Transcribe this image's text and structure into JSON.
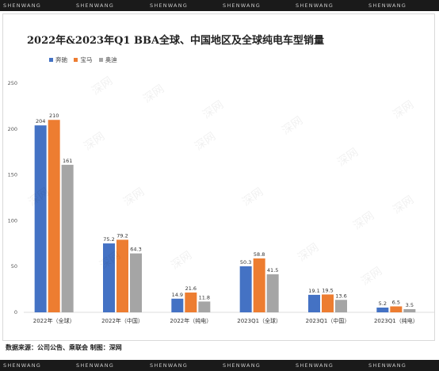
{
  "watermark_band": {
    "text": "SHENWANG",
    "bg": "#1a1a1a"
  },
  "watermark_overlay": {
    "text": "深网"
  },
  "source_note": "数据来源：公司公告、乘联会 制图：深网",
  "colors": {
    "series": [
      "#4472c4",
      "#ed7d31",
      "#a5a5a5"
    ],
    "axis_text": "#555555",
    "grid": "#e8e8e8"
  },
  "chart_data": {
    "type": "bar",
    "title": "2022年&2023年Q1 BBA全球、中国地区及全球纯电车型销量",
    "xlabel": "",
    "ylabel": "",
    "categories": [
      "2022年（全球）",
      "2022年（中国）",
      "2022年（纯电）",
      "2023Q1（全球）",
      "2023Q1（中国）",
      "2023Q1（纯电）"
    ],
    "series": [
      {
        "name": "奔驰",
        "values": [
          204,
          75.2,
          14.9,
          50.3,
          19.1,
          5.2
        ],
        "labels": [
          "204",
          "75.2",
          "14.9",
          "50.3",
          "19.1",
          "5.2"
        ]
      },
      {
        "name": "宝马",
        "values": [
          210,
          79.2,
          21.6,
          58.8,
          19.5,
          6.5
        ],
        "labels": [
          "210",
          "79.2",
          "21.6",
          "58.8",
          "19.5",
          "6.5"
        ]
      },
      {
        "name": "奥迪",
        "values": [
          161,
          64.3,
          11.8,
          41.5,
          13.6,
          3.5
        ],
        "labels": [
          "161",
          "64.3",
          "11.8",
          "41.5",
          "13.6",
          "3.5"
        ]
      }
    ],
    "yticks": [
      0,
      50,
      100,
      150,
      200,
      250
    ],
    "ylim": [
      0,
      250
    ],
    "grid": false,
    "legend": "top-left"
  }
}
